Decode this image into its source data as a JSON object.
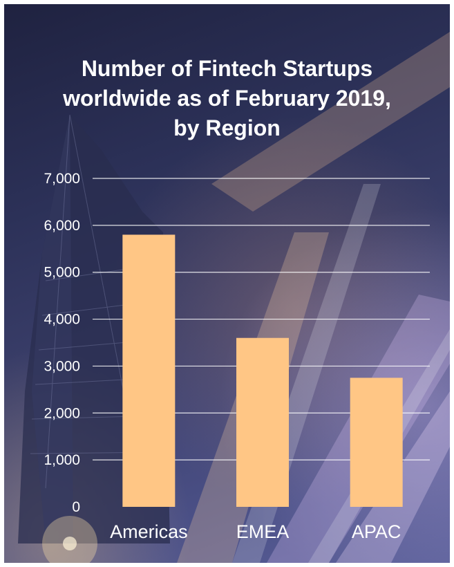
{
  "chart_data": {
    "type": "bar",
    "title_lines": [
      "Number of Fintech Startups",
      "worldwide as of February 2019,",
      "by Region"
    ],
    "categories": [
      "Americas",
      "EMEA",
      "APAC"
    ],
    "values": [
      5800,
      3600,
      2750
    ],
    "ylim": [
      0,
      7000
    ],
    "yticks": [
      0,
      1000,
      2000,
      3000,
      4000,
      5000,
      6000,
      7000
    ],
    "ytick_labels": [
      "0",
      "1,000",
      "2,000",
      "3,000",
      "4,000",
      "5,000",
      "6,000",
      "7,000"
    ],
    "grid": true,
    "legend": "none",
    "bar_color": "#FFC685",
    "grid_color": "#FFFFFF",
    "text_color": "#FFFFFF"
  }
}
